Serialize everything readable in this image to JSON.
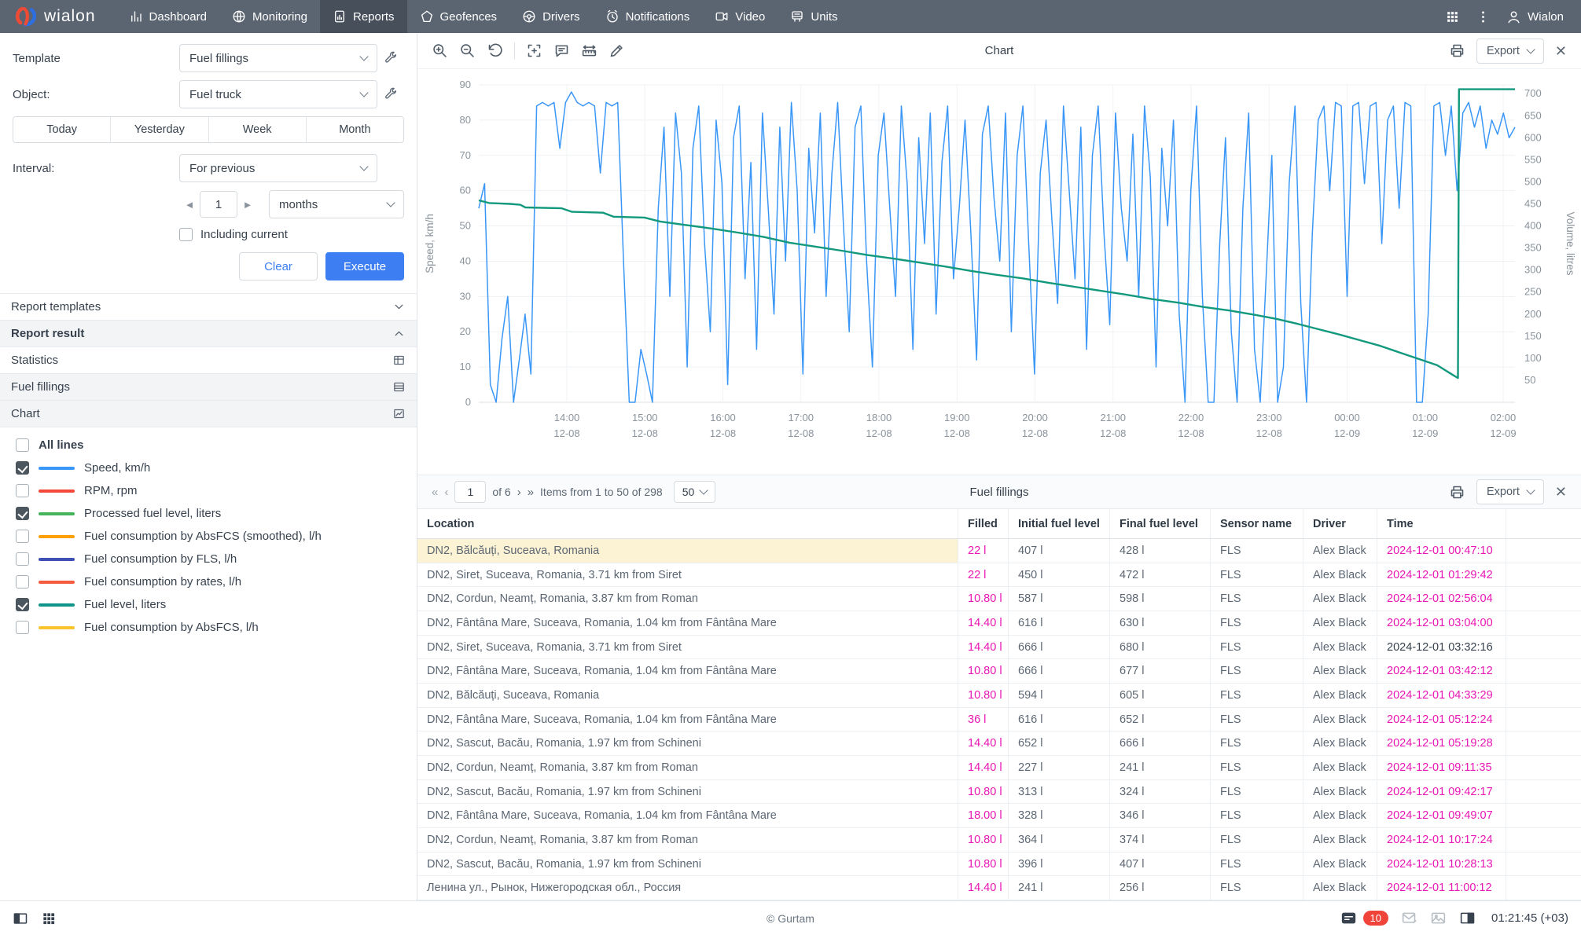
{
  "nav": {
    "brand": "wialon",
    "items": [
      {
        "label": "Dashboard",
        "icon": "dashboard",
        "active": false
      },
      {
        "label": "Monitoring",
        "icon": "monitoring",
        "active": false
      },
      {
        "label": "Reports",
        "icon": "reports",
        "active": true
      },
      {
        "label": "Geofences",
        "icon": "geofences",
        "active": false
      },
      {
        "label": "Drivers",
        "icon": "drivers",
        "active": false
      },
      {
        "label": "Notifications",
        "icon": "notifications",
        "active": false
      },
      {
        "label": "Video",
        "icon": "video",
        "active": false
      },
      {
        "label": "Units",
        "icon": "units",
        "active": false
      }
    ],
    "user": "Wialon"
  },
  "sidebar": {
    "template_label": "Template",
    "template_value": "Fuel fillings",
    "object_label": "Object:",
    "object_value": "Fuel truck",
    "quick_tabs": [
      "Today",
      "Yesterday",
      "Week",
      "Month"
    ],
    "interval_label": "Interval:",
    "interval_value": "For previous",
    "interval_count": "1",
    "interval_unit": "months",
    "including_current_label": "Including current",
    "clear_label": "Clear",
    "execute_label": "Execute",
    "sections": [
      {
        "label": "Report templates",
        "icon": "chevron-down",
        "shaded": false,
        "bold": false
      },
      {
        "label": "Report result",
        "icon": "chevron-up",
        "shaded": true,
        "bold": true
      },
      {
        "label": "Statistics",
        "icon": "table",
        "shaded": false,
        "bold": false
      },
      {
        "label": "Fuel fillings",
        "icon": "table2",
        "shaded": true,
        "bold": false
      },
      {
        "label": "Chart",
        "icon": "chart-sm",
        "shaded": true,
        "bold": false
      }
    ],
    "legend": [
      {
        "label": "All lines",
        "checked": false,
        "color": null,
        "bold": true
      },
      {
        "label": "Speed, km/h",
        "checked": true,
        "color": "#3b97f7",
        "bold": false
      },
      {
        "label": "RPM, rpm",
        "checked": false,
        "color": "#f4483b",
        "bold": false
      },
      {
        "label": "Processed fuel level, liters",
        "checked": true,
        "color": "#46b45b",
        "bold": false
      },
      {
        "label": "Fuel consumption by AbsFCS (smoothed), l/h",
        "checked": false,
        "color": "#ffa000",
        "bold": false
      },
      {
        "label": "Fuel consumption by FLS, l/h",
        "checked": false,
        "color": "#4150b5",
        "bold": false
      },
      {
        "label": "Fuel consumption by rates, l/h",
        "checked": false,
        "color": "#f55b3d",
        "bold": false
      },
      {
        "label": "Fuel level, liters",
        "checked": true,
        "color": "#0e9488",
        "bold": false
      },
      {
        "label": "Fuel consumption by AbsFCS, l/h",
        "checked": false,
        "color": "#fcc330",
        "bold": false
      }
    ]
  },
  "chart_panel": {
    "title": "Chart",
    "toolbar_icons": [
      "zoom-in",
      "zoom-out",
      "reset-zoom",
      "divider",
      "fit-selection",
      "comment",
      "ruler",
      "edit"
    ],
    "export_label": "Export"
  },
  "chart_data": {
    "type": "line",
    "title": "Chart",
    "ylabel_left": "Speed, km/h",
    "ylabel_right": "Volume, litres",
    "y_left_range": [
      0,
      90
    ],
    "y_left_step": 10,
    "y_right_range": [
      0,
      720
    ],
    "y_right_ticks": [
      50,
      100,
      150,
      200,
      250,
      300,
      350,
      400,
      450,
      500,
      550,
      600,
      650,
      700
    ],
    "x_ticks": [
      {
        "time": "14:00",
        "date": "12-08"
      },
      {
        "time": "15:00",
        "date": "12-08"
      },
      {
        "time": "16:00",
        "date": "12-08"
      },
      {
        "time": "17:00",
        "date": "12-08"
      },
      {
        "time": "18:00",
        "date": "12-08"
      },
      {
        "time": "19:00",
        "date": "12-08"
      },
      {
        "time": "20:00",
        "date": "12-08"
      },
      {
        "time": "21:00",
        "date": "12-08"
      },
      {
        "time": "22:00",
        "date": "12-08"
      },
      {
        "time": "23:00",
        "date": "12-08"
      },
      {
        "time": "00:00",
        "date": "12-09"
      },
      {
        "time": "01:00",
        "date": "12-09"
      },
      {
        "time": "02:00",
        "date": "12-09"
      }
    ],
    "series": [
      {
        "name": "Speed, km/h",
        "color": "#3b97f7",
        "axis": "left",
        "values": [
          55,
          62,
          5,
          0,
          18,
          30,
          0,
          12,
          25,
          8,
          84,
          85,
          84,
          85,
          72,
          85,
          88,
          85,
          84,
          85,
          84,
          65,
          85,
          84,
          85,
          40,
          0,
          0,
          15,
          8,
          0,
          55,
          78,
          30,
          82,
          65,
          10,
          72,
          84,
          45,
          20,
          80,
          62,
          5,
          75,
          84,
          35,
          68,
          15,
          82,
          55,
          25,
          78,
          40,
          85,
          60,
          8,
          72,
          48,
          82,
          30,
          65,
          85,
          50,
          20,
          78,
          84,
          40,
          10,
          70,
          82,
          55,
          30,
          84,
          62,
          15,
          75,
          45,
          82,
          25,
          68,
          84,
          35,
          55,
          80,
          48,
          12,
          76,
          84,
          58,
          40,
          82,
          20,
          70,
          84,
          45,
          8,
          65,
          80,
          52,
          28,
          84,
          60,
          35,
          78,
          15,
          70,
          84,
          48,
          22,
          82,
          55,
          40,
          76,
          30,
          84,
          64,
          10,
          72,
          50,
          80,
          25,
          0,
          60,
          84,
          30,
          0,
          0,
          45,
          75,
          20,
          0,
          55,
          82,
          15,
          0,
          35,
          70,
          0,
          10,
          62,
          84,
          28,
          0,
          48,
          80,
          84,
          60,
          85,
          84,
          30,
          84,
          85,
          62,
          84,
          85,
          45,
          80,
          84,
          55,
          85,
          84,
          0,
          0,
          25,
          84,
          85,
          70,
          84,
          60,
          82,
          85,
          78,
          84,
          72,
          80,
          76,
          82,
          75,
          78
        ]
      },
      {
        "name": "Fuel level, liters",
        "color": "#12997d",
        "axis": "right",
        "points": [
          [
            0.0,
            458
          ],
          [
            0.01,
            452
          ],
          [
            0.03,
            450
          ],
          [
            0.04,
            448
          ],
          [
            0.045,
            442
          ],
          [
            0.08,
            440
          ],
          [
            0.09,
            432
          ],
          [
            0.12,
            430
          ],
          [
            0.13,
            421
          ],
          [
            0.16,
            419
          ],
          [
            0.175,
            410
          ],
          [
            0.2,
            402
          ],
          [
            0.225,
            394
          ],
          [
            0.25,
            385
          ],
          [
            0.275,
            375
          ],
          [
            0.3,
            362
          ],
          [
            0.325,
            353
          ],
          [
            0.35,
            344
          ],
          [
            0.375,
            334
          ],
          [
            0.4,
            326
          ],
          [
            0.425,
            317
          ],
          [
            0.45,
            308
          ],
          [
            0.475,
            298
          ],
          [
            0.5,
            289
          ],
          [
            0.525,
            281
          ],
          [
            0.55,
            271
          ],
          [
            0.575,
            262
          ],
          [
            0.6,
            253
          ],
          [
            0.625,
            244
          ],
          [
            0.65,
            234
          ],
          [
            0.675,
            226
          ],
          [
            0.7,
            216
          ],
          [
            0.725,
            208
          ],
          [
            0.75,
            198
          ],
          [
            0.77,
            189
          ],
          [
            0.79,
            178
          ],
          [
            0.81,
            166
          ],
          [
            0.83,
            154
          ],
          [
            0.85,
            141
          ],
          [
            0.87,
            128
          ],
          [
            0.89,
            112
          ],
          [
            0.91,
            96
          ],
          [
            0.925,
            84
          ],
          [
            0.94,
            62
          ],
          [
            0.945,
            55
          ],
          [
            0.946,
            710
          ],
          [
            1.0,
            710
          ]
        ]
      }
    ]
  },
  "table_panel": {
    "title": "Fuel fillings",
    "export_label": "Export",
    "pagination": {
      "first": "«",
      "prev": "‹",
      "page": "1",
      "of_text": "of 6",
      "next": "›",
      "last": "»",
      "items_text": "Items from 1 to 50 of 298",
      "page_size": "50"
    },
    "columns": [
      "Location",
      "Filled",
      "Initial fuel level",
      "Final fuel level",
      "Sensor name",
      "Driver",
      "Time"
    ],
    "rows": [
      {
        "location": "DN2, Bălcăuți, Suceava, Romania",
        "filled": "22 l",
        "initial": "407 l",
        "final": "428 l",
        "sensor": "FLS",
        "driver": "Alex Black",
        "time": "2024-12-01 00:47:10",
        "highlight": true,
        "time_pink": true
      },
      {
        "location": "DN2, Siret, Suceava, Romania, 3.71 km from Siret",
        "filled": "22 l",
        "initial": "450 l",
        "final": "472 l",
        "sensor": "FLS",
        "driver": "Alex Black",
        "time": "2024-12-01 01:29:42",
        "highlight": false,
        "time_pink": true
      },
      {
        "location": "DN2, Cordun, Neamț, Romania, 3.87 km from Roman",
        "filled": "10.80 l",
        "initial": "587 l",
        "final": "598 l",
        "sensor": "FLS",
        "driver": "Alex Black",
        "time": "2024-12-01 02:56:04",
        "highlight": false,
        "time_pink": true
      },
      {
        "location": "DN2, Fântâna Mare, Suceava, Romania, 1.04 km from Fântâna Mare",
        "filled": "14.40 l",
        "initial": "616 l",
        "final": "630 l",
        "sensor": "FLS",
        "driver": "Alex Black",
        "time": "2024-12-01 03:04:00",
        "highlight": false,
        "time_pink": true
      },
      {
        "location": "DN2, Siret, Suceava, Romania, 3.71 km from Siret",
        "filled": "14.40 l",
        "initial": "666 l",
        "final": "680 l",
        "sensor": "FLS",
        "driver": "Alex Black",
        "time": "2024-12-01 03:32:16",
        "highlight": false,
        "time_pink": false
      },
      {
        "location": "DN2, Fântâna Mare, Suceava, Romania, 1.04 km from Fântâna Mare",
        "filled": "10.80 l",
        "initial": "666 l",
        "final": "677 l",
        "sensor": "FLS",
        "driver": "Alex Black",
        "time": "2024-12-01 03:42:12",
        "highlight": false,
        "time_pink": true
      },
      {
        "location": "DN2, Bălcăuți, Suceava, Romania",
        "filled": "10.80 l",
        "initial": "594 l",
        "final": "605 l",
        "sensor": "FLS",
        "driver": "Alex Black",
        "time": "2024-12-01 04:33:29",
        "highlight": false,
        "time_pink": true
      },
      {
        "location": "DN2, Fântâna Mare, Suceava, Romania, 1.04 km from Fântâna Mare",
        "filled": "36 l",
        "initial": "616 l",
        "final": "652 l",
        "sensor": "FLS",
        "driver": "Alex Black",
        "time": "2024-12-01 05:12:24",
        "highlight": false,
        "time_pink": true
      },
      {
        "location": "DN2, Sascut, Bacău, Romania, 1.97 km from Schineni",
        "filled": "14.40 l",
        "initial": "652 l",
        "final": "666 l",
        "sensor": "FLS",
        "driver": "Alex Black",
        "time": "2024-12-01 05:19:28",
        "highlight": false,
        "time_pink": true
      },
      {
        "location": "DN2, Cordun, Neamț, Romania, 3.87 km from Roman",
        "filled": "14.40 l",
        "initial": "227 l",
        "final": "241 l",
        "sensor": "FLS",
        "driver": "Alex Black",
        "time": "2024-12-01 09:11:35",
        "highlight": false,
        "time_pink": true
      },
      {
        "location": "DN2, Sascut, Bacău, Romania, 1.97 km from Schineni",
        "filled": "10.80 l",
        "initial": "313 l",
        "final": "324 l",
        "sensor": "FLS",
        "driver": "Alex Black",
        "time": "2024-12-01 09:42:17",
        "highlight": false,
        "time_pink": true
      },
      {
        "location": "DN2, Fântâna Mare, Suceava, Romania, 1.04 km from Fântâna Mare",
        "filled": "18.00 l",
        "initial": "328 l",
        "final": "346 l",
        "sensor": "FLS",
        "driver": "Alex Black",
        "time": "2024-12-01 09:49:07",
        "highlight": false,
        "time_pink": true
      },
      {
        "location": "DN2, Cordun, Neamț, Romania, 3.87 km from Roman",
        "filled": "10.80 l",
        "initial": "364 l",
        "final": "374 l",
        "sensor": "FLS",
        "driver": "Alex Black",
        "time": "2024-12-01 10:17:24",
        "highlight": false,
        "time_pink": true
      },
      {
        "location": "DN2, Sascut, Bacău, Romania, 1.97 km from Schineni",
        "filled": "10.80 l",
        "initial": "396 l",
        "final": "407 l",
        "sensor": "FLS",
        "driver": "Alex Black",
        "time": "2024-12-01 10:28:13",
        "highlight": false,
        "time_pink": true
      },
      {
        "location": "Ленина ул., Рынок, Нижегородская обл., Россия",
        "filled": "14.40 l",
        "initial": "241 l",
        "final": "256 l",
        "sensor": "FLS",
        "driver": "Alex Black",
        "time": "2024-12-01 11:00:12",
        "highlight": false,
        "time_pink": true
      }
    ]
  },
  "status_bar": {
    "copyright": "© Gurtam",
    "badge": "10",
    "time": "01:21:45 (+03)"
  }
}
